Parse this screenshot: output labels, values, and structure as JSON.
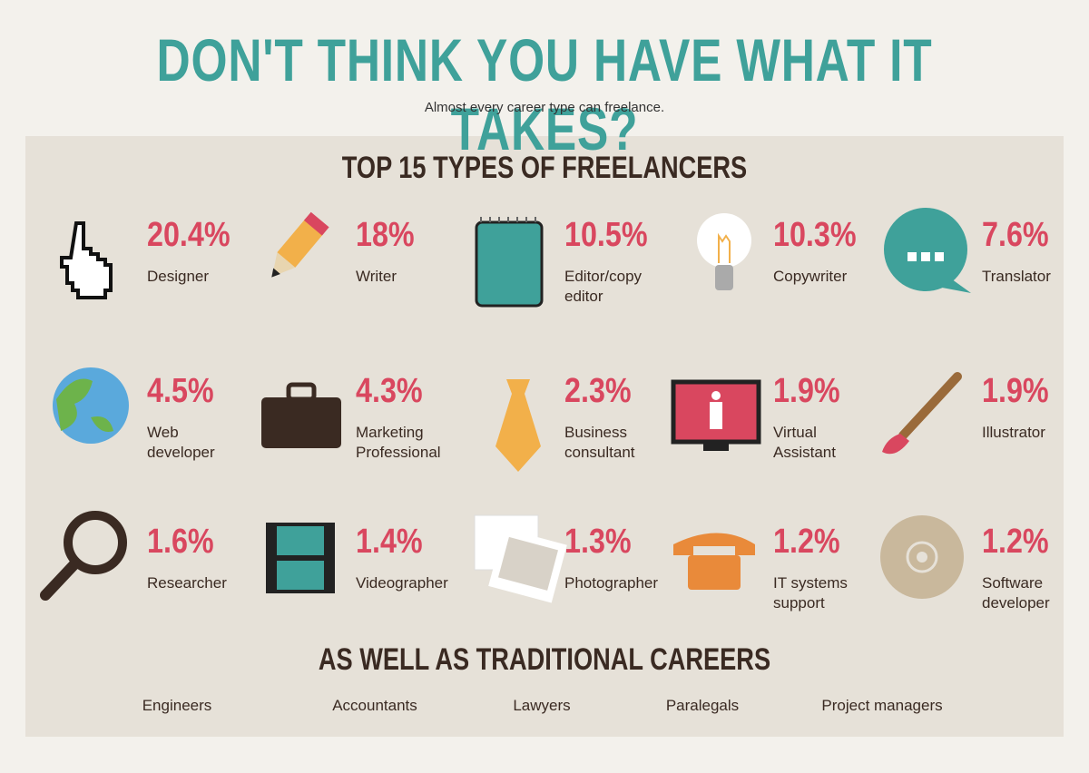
{
  "header": {
    "title": "DON'T THINK YOU HAVE WHAT IT TAKES?",
    "subtitle": "Almost every career type can freelance."
  },
  "panel": {
    "title": "TOP 15 TYPES OF FREELANCERS",
    "items": [
      {
        "percent": "20.4%",
        "label": "Designer"
      },
      {
        "percent": "18%",
        "label": "Writer"
      },
      {
        "percent": "10.5%",
        "label": "Editor/copy editor"
      },
      {
        "percent": "10.3%",
        "label": "Copywriter"
      },
      {
        "percent": "7.6%",
        "label": "Translator"
      },
      {
        "percent": "4.5%",
        "label": "Web developer"
      },
      {
        "percent": "4.3%",
        "label": "Marketing Professional"
      },
      {
        "percent": "2.3%",
        "label": "Business consultant"
      },
      {
        "percent": "1.9%",
        "label": "Virtual Assistant"
      },
      {
        "percent": "1.9%",
        "label": "Illustrator"
      },
      {
        "percent": "1.6%",
        "label": "Researcher"
      },
      {
        "percent": "1.4%",
        "label": "Videographer"
      },
      {
        "percent": "1.3%",
        "label": "Photographer"
      },
      {
        "percent": "1.2%",
        "label": "IT systems support"
      },
      {
        "percent": "1.2%",
        "label": "Software developer"
      }
    ],
    "traditional_title": "AS WELL AS TRADITIONAL CAREERS",
    "traditional": [
      "Engineers",
      "Accountants",
      "Lawyers",
      "Paralegals",
      "Project managers"
    ]
  }
}
